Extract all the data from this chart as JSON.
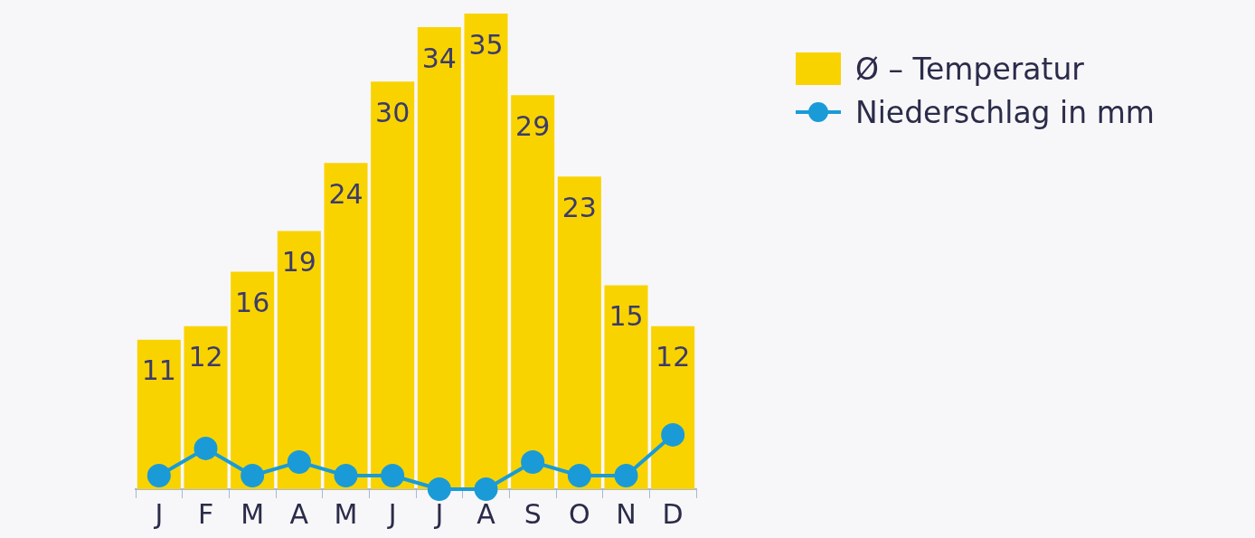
{
  "chart_data": {
    "type": "bar",
    "categories": [
      "J",
      "F",
      "M",
      "A",
      "M",
      "J",
      "J",
      "A",
      "S",
      "O",
      "N",
      "D"
    ],
    "series": [
      {
        "name": "Ø – Temperatur",
        "color": "#f9d300",
        "values": [
          11,
          12,
          16,
          19,
          24,
          30,
          34,
          35,
          29,
          23,
          15,
          12
        ],
        "value_labels": [
          "11",
          "12",
          "16",
          "19",
          "24",
          "30",
          "34",
          "35",
          "29",
          "23",
          "15",
          "12"
        ]
      },
      {
        "name": "Niederschlag in mm",
        "type": "line",
        "color": "#1a9bd7",
        "values": [
          1,
          3,
          1,
          2,
          1,
          1,
          0,
          0,
          2,
          1,
          1,
          4
        ]
      }
    ],
    "legend": "top right",
    "tick_labels": "x",
    "grid": false,
    "marker": "circle",
    "line_style": "solid"
  }
}
